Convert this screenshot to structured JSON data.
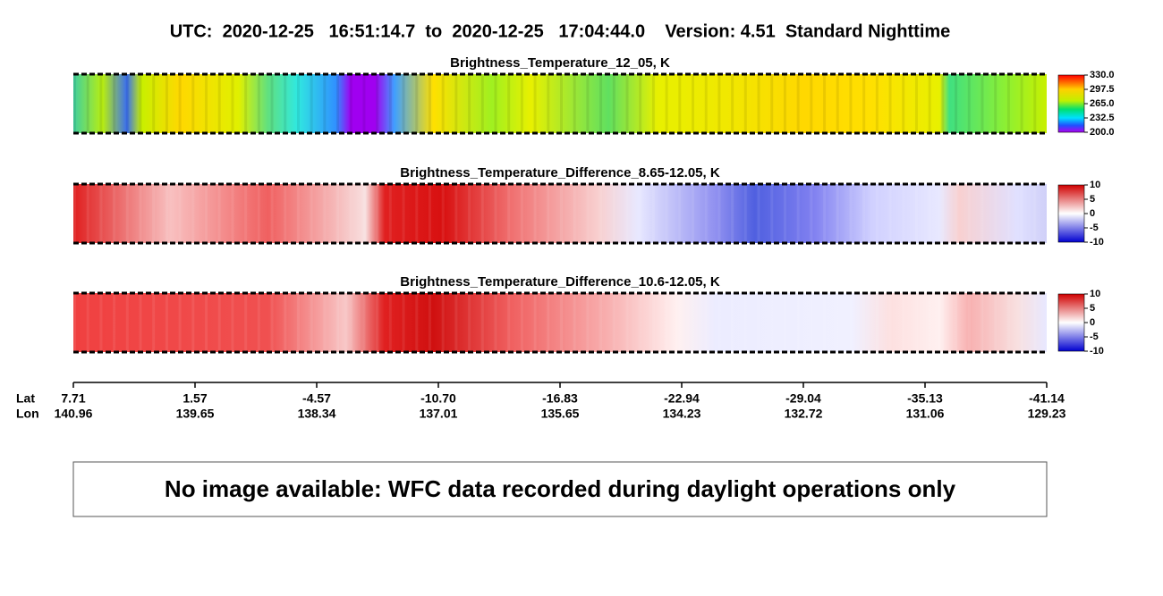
{
  "header": {
    "title": "UTC:  2020-12-25   16:51:14.7  to  2020-12-25   17:04:44.0    Version: 4.51  Standard Nighttime"
  },
  "panels": [
    {
      "title": "Brightness_Temperature_12_05, K",
      "colorbar_labels": [
        "330.0",
        "297.5",
        "265.0",
        "232.5",
        "200.0"
      ]
    },
    {
      "title": "Brightness_Temperature_Difference_8.65-12.05, K",
      "colorbar_labels": [
        "10",
        "5",
        "0",
        "-5",
        "-10"
      ]
    },
    {
      "title": "Brightness_Temperature_Difference_10.6-12.05, K",
      "colorbar_labels": [
        "10",
        "5",
        "0",
        "-5",
        "-10"
      ]
    }
  ],
  "axis": {
    "lat_label": "Lat",
    "lon_label": "Lon",
    "lat": [
      "7.71",
      "1.57",
      "-4.57",
      "-10.70",
      "-16.83",
      "-22.94",
      "-29.04",
      "-35.13",
      "-41.14"
    ],
    "lon": [
      "140.96",
      "139.65",
      "138.34",
      "137.01",
      "135.65",
      "134.23",
      "132.72",
      "131.06",
      "129.23"
    ]
  },
  "notice": "No image available: WFC data recorded during daylight operations only"
}
